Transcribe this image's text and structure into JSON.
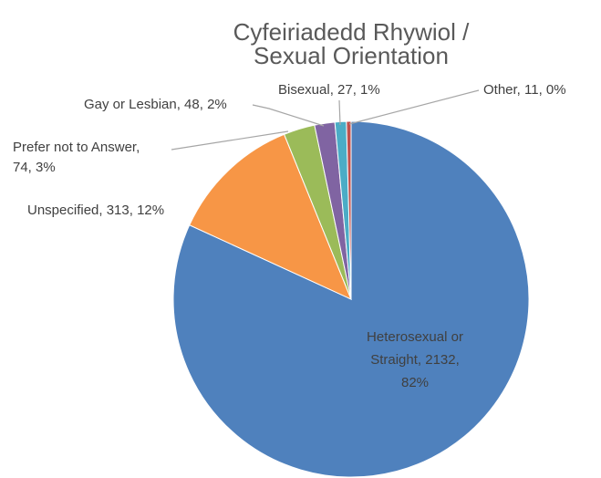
{
  "chart_data": {
    "type": "pie",
    "title": "Cyfeiriadedd Rhywiol / Sexual Orientation",
    "title_lines": [
      "Cyfeiriadedd Rhywiol /",
      "Sexual Orientation"
    ],
    "categories": [
      "Heterosexual or Straight",
      "Unspecified",
      "Prefer not to Answer",
      "Gay or Lesbian",
      "Bisexual",
      "Other"
    ],
    "values": [
      2132,
      313,
      74,
      48,
      27,
      11
    ],
    "percent_labels": [
      "82%",
      "12%",
      "3%",
      "2%",
      "1%",
      "0%"
    ],
    "colors": [
      "#4f81bd",
      "#f79646",
      "#9bbb59",
      "#8064a2",
      "#4bacc6",
      "#c0504d"
    ],
    "data_labels": [
      [
        "Heterosexual or",
        "Straight, 2132,",
        "82%"
      ],
      [
        "Unspecified, 313, 12%"
      ],
      [
        "Prefer not to Answer,",
        "74, 3%"
      ],
      [
        "Gay or Lesbian, 48, 2%"
      ],
      [
        "Bisexual, 27, 1%"
      ],
      [
        "Other, 11, 0%"
      ]
    ],
    "legend": "none",
    "start_angle": "12 o'clock",
    "direction": "clockwise"
  }
}
